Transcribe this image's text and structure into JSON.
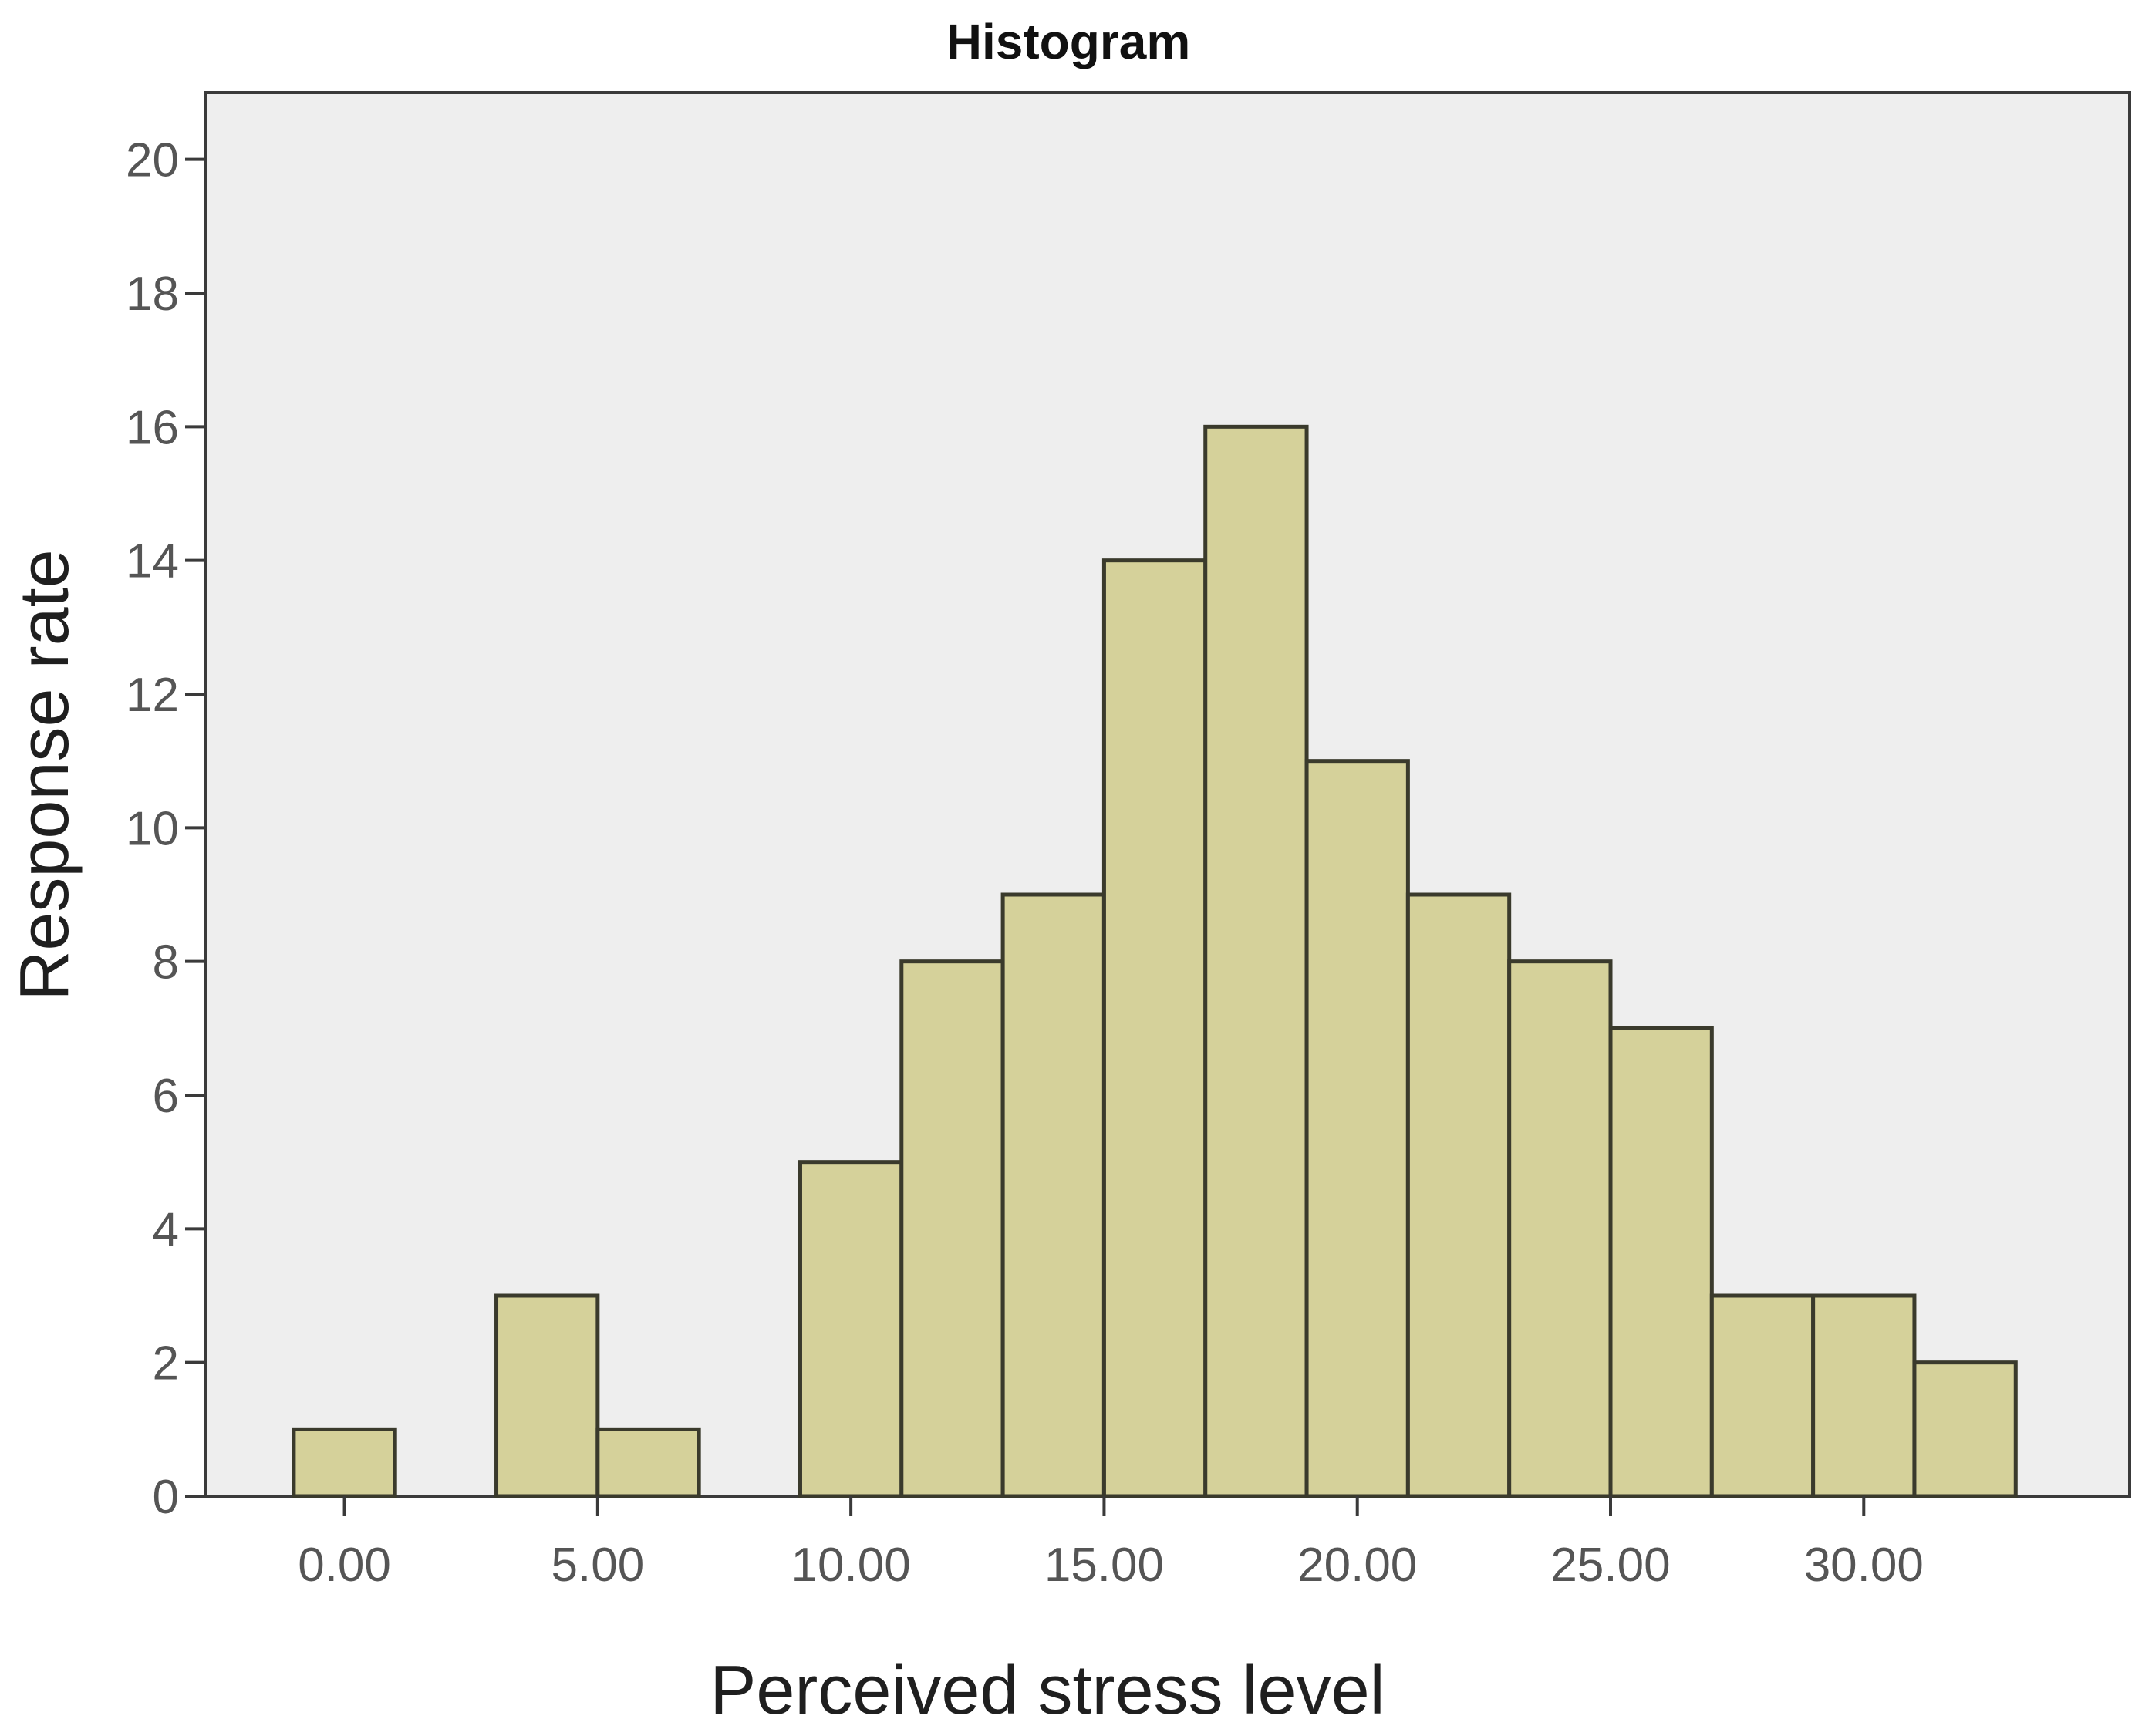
{
  "chart_data": {
    "type": "bar",
    "title": "Histogram",
    "xlabel": "Perceived stress level",
    "ylabel": "Response rate",
    "bin_width": 2,
    "bins": [
      {
        "start": -1,
        "end": 1,
        "value": 1
      },
      {
        "start": 1,
        "end": 3,
        "value": 0
      },
      {
        "start": 3,
        "end": 5,
        "value": 3
      },
      {
        "start": 5,
        "end": 7,
        "value": 1
      },
      {
        "start": 7,
        "end": 9,
        "value": 0
      },
      {
        "start": 9,
        "end": 11,
        "value": 5
      },
      {
        "start": 11,
        "end": 13,
        "value": 8
      },
      {
        "start": 13,
        "end": 15,
        "value": 9
      },
      {
        "start": 15,
        "end": 17,
        "value": 14
      },
      {
        "start": 17,
        "end": 19,
        "value": 16
      },
      {
        "start": 19,
        "end": 21,
        "value": 11
      },
      {
        "start": 21,
        "end": 23,
        "value": 9
      },
      {
        "start": 23,
        "end": 25,
        "value": 8
      },
      {
        "start": 25,
        "end": 27,
        "value": 7
      },
      {
        "start": 27,
        "end": 29,
        "value": 3
      },
      {
        "start": 29,
        "end": 31,
        "value": 3
      },
      {
        "start": 31,
        "end": 33,
        "value": 2
      }
    ],
    "xlim": [
      -2.75,
      35.25
    ],
    "ylim": [
      0,
      21
    ],
    "x_ticks": [
      0,
      5,
      10,
      15,
      20,
      25,
      30
    ],
    "x_tick_labels": [
      "0.00",
      "5.00",
      "10.00",
      "15.00",
      "20.00",
      "25.00",
      "30.00"
    ],
    "y_ticks": [
      0,
      2,
      4,
      6,
      8,
      10,
      12,
      14,
      16,
      18,
      20
    ],
    "y_tick_labels": [
      "0",
      "2",
      "4",
      "6",
      "8",
      "10",
      "12",
      "14",
      "16",
      "18",
      "20"
    ],
    "grid": false,
    "colors": {
      "bar_fill": "#d5d19a",
      "bar_stroke": "#3a3a2c",
      "plot_background": "#eeeeee",
      "axis_line": "#3a3a3a",
      "tick_label": "#555555",
      "axis_title": "#1f1f1f",
      "title": "#111111"
    }
  }
}
